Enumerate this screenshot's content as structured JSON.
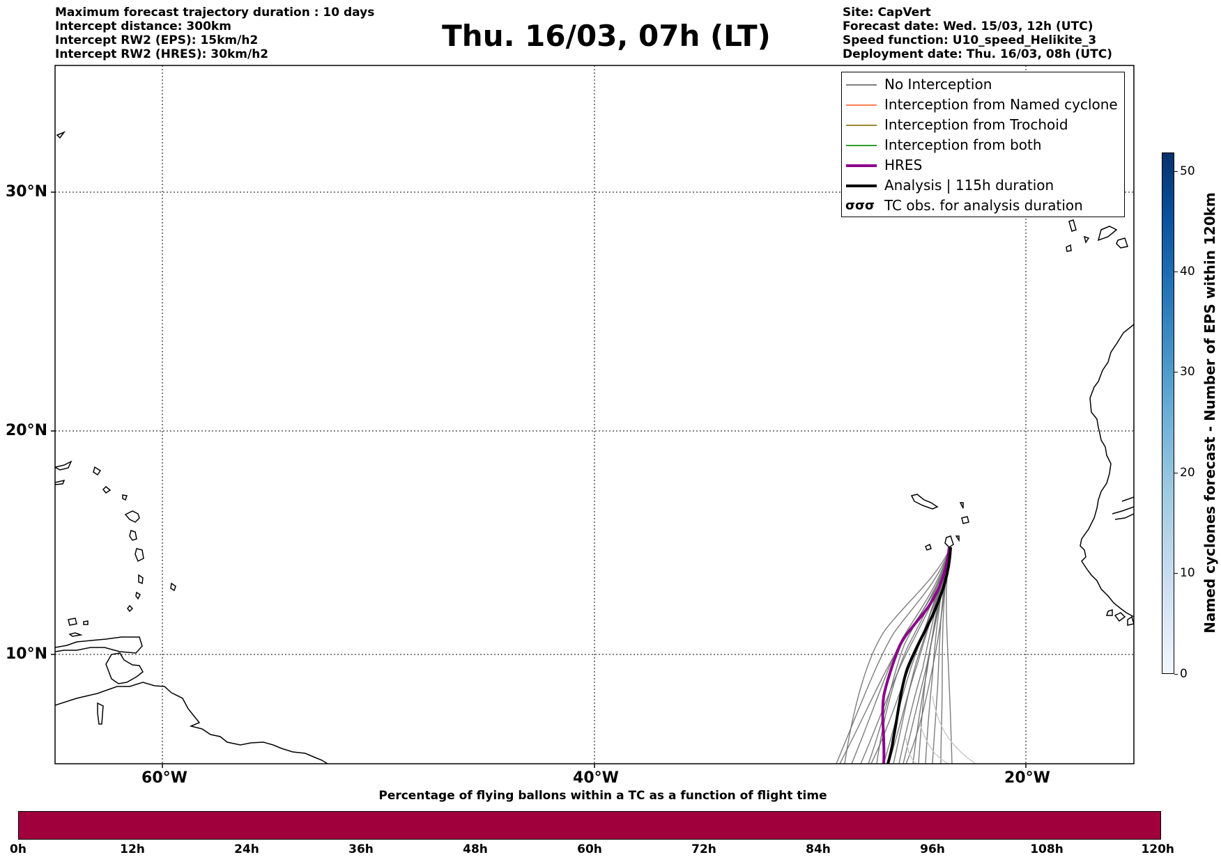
{
  "header": {
    "left_lines": [
      "Maximum forecast trajectory duration : 10 days",
      "Intercept distance: 300km",
      "Intercept RW2 (EPS):  15km/h2",
      "Intercept RW2 (HRES): 30km/h2"
    ],
    "title": "Thu. 16/03, 07h (LT)",
    "right_lines": [
      "Site: CapVert",
      "Forecast date: Wed. 15/03, 12h (UTC)",
      "Speed function: U10_speed_Helikite_3",
      "Deployment date: Thu. 16/03, 08h (UTC)"
    ]
  },
  "map": {
    "lat_labels": [
      "30°N",
      "20°N",
      "10°N"
    ],
    "lon_labels": [
      "60°W",
      "40°W",
      "20°W"
    ],
    "grid": "dotted",
    "coastline_color": "#000000"
  },
  "legend": {
    "items": [
      {
        "label": "No Interception",
        "color": "#808080"
      },
      {
        "label": "Interception from Named cyclone",
        "color": "#ff7f50"
      },
      {
        "label": "Interception from Trochoid",
        "color": "#9a8a30"
      },
      {
        "label": "Interception from both",
        "color": "#2ca02c"
      },
      {
        "label": "HRES",
        "color": "#8b008b"
      },
      {
        "label": "Analysis | 115h duration",
        "color": "#000000"
      },
      {
        "label": "TC obs. for analysis duration",
        "glyph": "σσσ"
      }
    ]
  },
  "side_colorbar": {
    "label": "Named cyclones forecast - Number of EPS within 120km",
    "ticks": [
      "0",
      "10",
      "20",
      "30",
      "40",
      "50"
    ],
    "colormap": "blues"
  },
  "bottom_colorbar": {
    "title": "Percentage of flying ballons within a TC as a function of flight time",
    "ticks": [
      "0h",
      "12h",
      "24h",
      "36h",
      "48h",
      "60h",
      "72h",
      "84h",
      "96h",
      "108h",
      "120h"
    ],
    "color": "#a0003c"
  }
}
